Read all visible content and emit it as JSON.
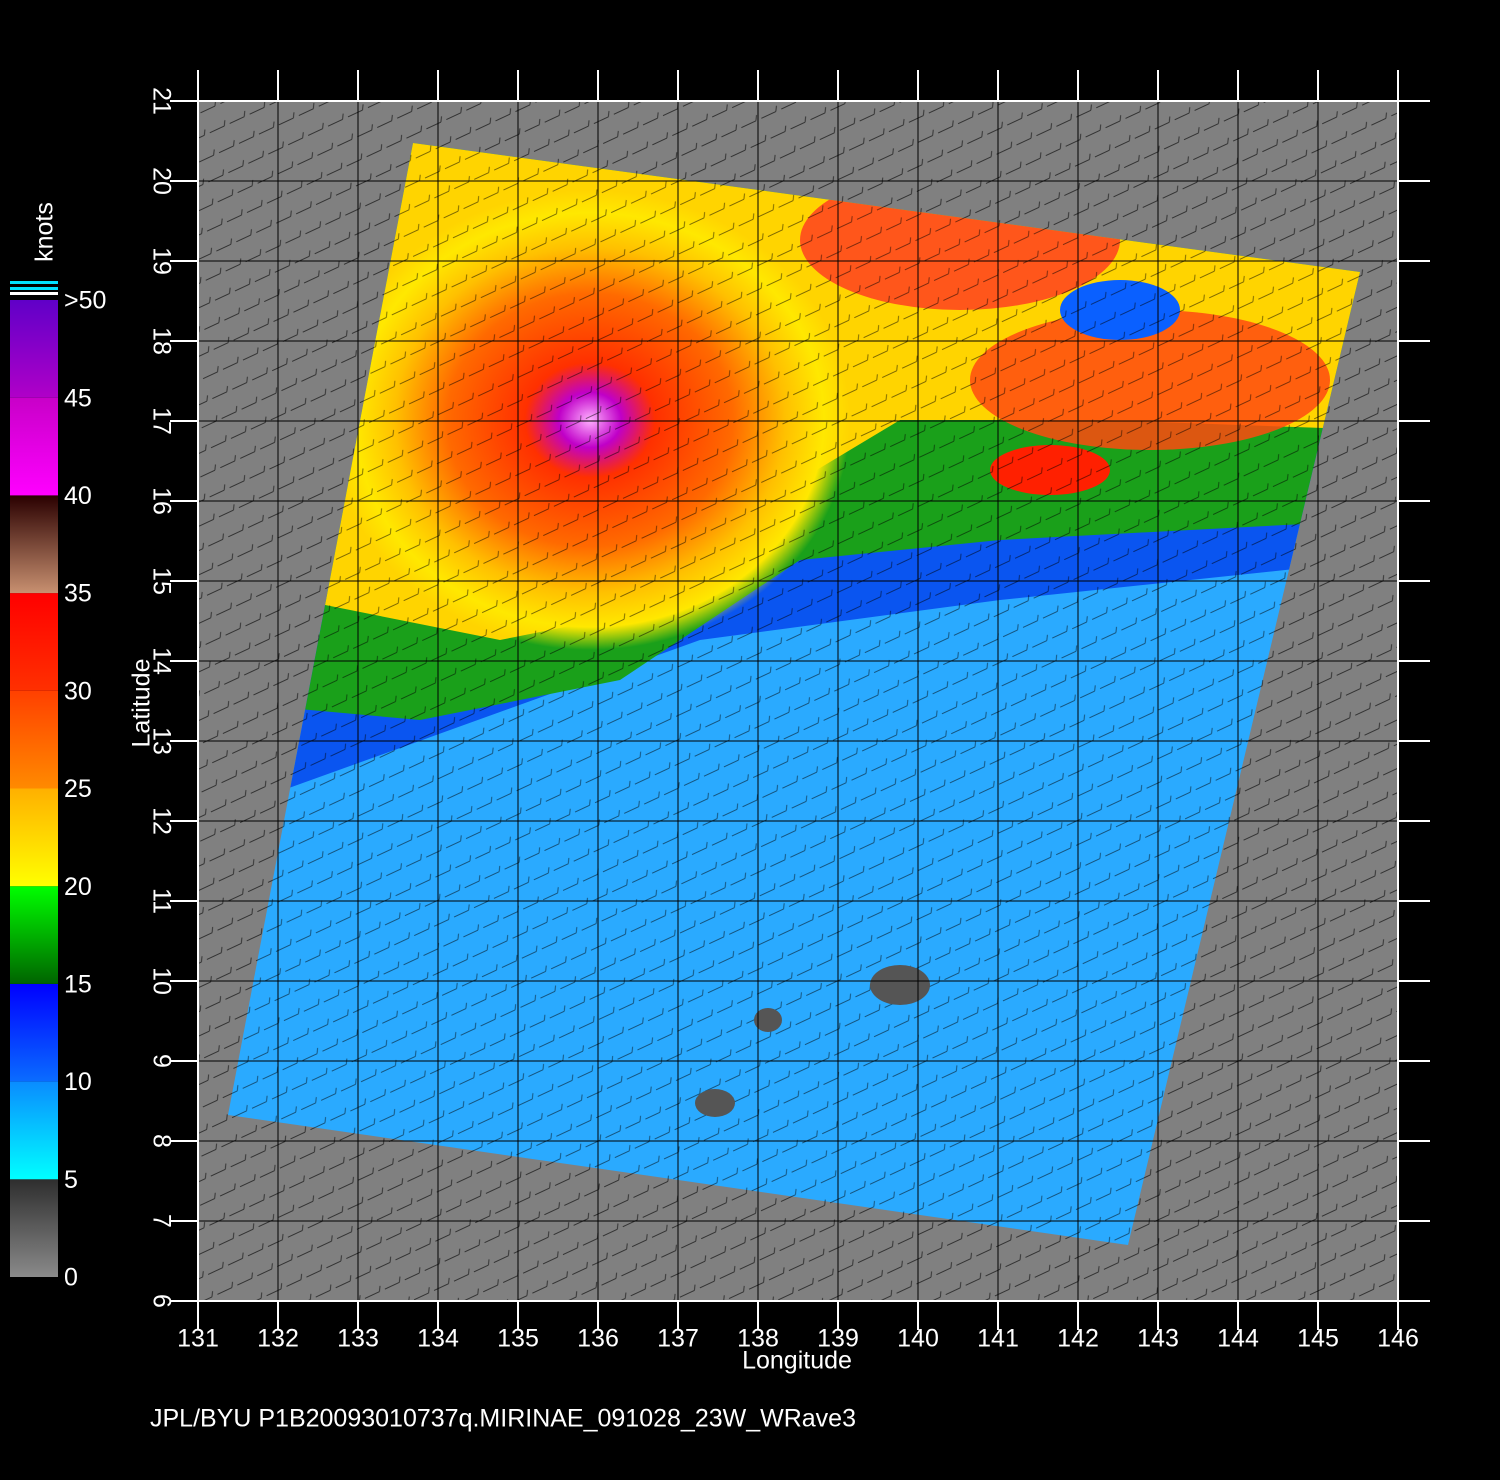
{
  "map": {
    "x_label": "Longitude",
    "y_label": "Latitude",
    "xlim": [
      131,
      146
    ],
    "ylim": [
      6,
      21
    ],
    "xticks": [
      131,
      132,
      133,
      134,
      135,
      136,
      137,
      138,
      139,
      140,
      141,
      142,
      143,
      144,
      145,
      146
    ],
    "yticks": [
      6,
      7,
      8,
      9,
      10,
      11,
      12,
      13,
      14,
      15,
      16,
      17,
      18,
      19,
      20,
      21
    ]
  },
  "colorbar": {
    "label": "knots",
    "lim": [
      0,
      50
    ],
    "ticks": [
      0,
      5,
      10,
      15,
      20,
      25,
      30,
      35,
      40,
      45,
      {
        "value": 50,
        "label": ">50"
      }
    ],
    "colors": [
      [
        "#8a8a8a",
        "#2e2e2e"
      ],
      [
        "#00ffff",
        "#0a8cff"
      ],
      [
        "#0a6cff",
        "#0000ff"
      ],
      [
        "#006400",
        "#00ff00"
      ],
      [
        "#ffff00",
        "#ffb000"
      ],
      [
        "#ff8a00",
        "#ff4000"
      ],
      [
        "#ff3000",
        "#ff0000"
      ],
      [
        "#c89070",
        "#2a0000"
      ],
      [
        "#ff00ff",
        "#c800c8"
      ],
      [
        "#b000c8",
        "#6000c8"
      ]
    ]
  },
  "footer": "JPL/BYU  P1B20093010737q.MIRINAE_091028_23W_WRave3"
}
